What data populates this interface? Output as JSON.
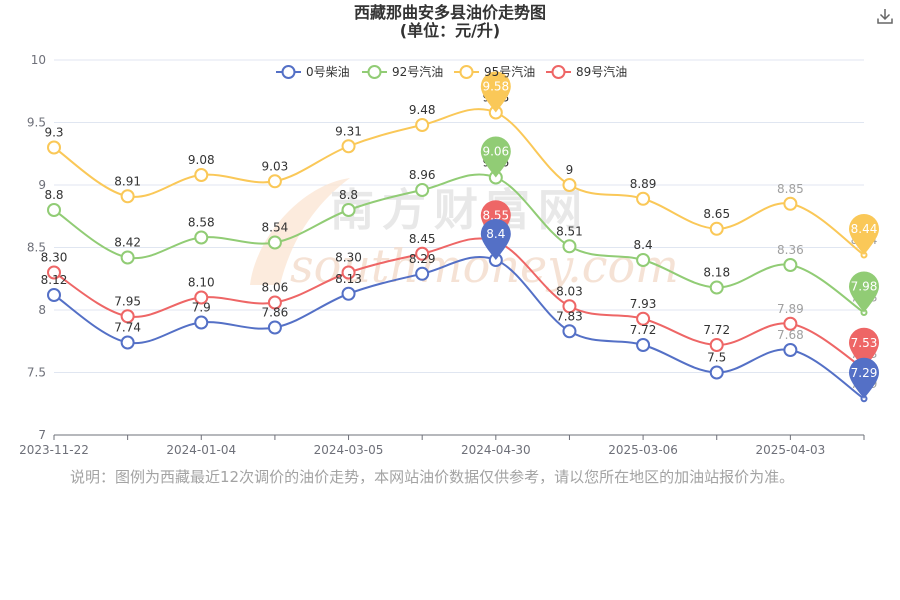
{
  "title": {
    "line1": "西藏那曲安多县油价走势图",
    "line2": "(单位：元/升)"
  },
  "toolbar": {
    "download_icon": "download-icon"
  },
  "watermark": {
    "cn": "南方财富网",
    "en": "southmoney.com"
  },
  "note": "说明：图例为西藏最近12次调价的油价走势，本网站油价数据仅供参考，请以您所在地区的加油站报价为准。",
  "chart_data": {
    "type": "line",
    "title": "西藏那曲安多县油价走势图",
    "subtitle": "(单位：元/升)",
    "xlabel": "",
    "ylabel": "",
    "ylim": [
      7,
      10
    ],
    "yticks": [
      7,
      7.5,
      8,
      8.5,
      9,
      9.5,
      10
    ],
    "ytick_labels": [
      "7",
      "7.5",
      "8",
      "8.5",
      "9",
      "9.5",
      "10"
    ],
    "point_count": 12,
    "x_tick_labels": [
      {
        "index": 0,
        "label": "2023-11-22"
      },
      {
        "index": 2,
        "label": "2024-01-04"
      },
      {
        "index": 4,
        "label": "2024-03-05"
      },
      {
        "index": 6,
        "label": "2024-04-30"
      },
      {
        "index": 8,
        "label": "2025-03-06"
      },
      {
        "index": 10,
        "label": "2025-04-03"
      }
    ],
    "grid": true,
    "legend_position": "top-center",
    "series": [
      {
        "name": "0号柴油",
        "color": "#5470c6",
        "values": [
          8.12,
          7.74,
          7.9,
          7.86,
          8.13,
          8.29,
          8.4,
          7.83,
          7.72,
          7.5,
          7.68,
          7.29
        ],
        "labels": [
          "8.12",
          "7.74",
          "7.9",
          "7.86",
          "8.13",
          "8.29",
          "8.4",
          "7.83",
          "7.72",
          "7.5",
          "7.68",
          "7.29"
        ]
      },
      {
        "name": "92号汽油",
        "color": "#91cc75",
        "values": [
          8.8,
          8.42,
          8.58,
          8.54,
          8.8,
          8.96,
          9.06,
          8.51,
          8.4,
          8.18,
          8.36,
          7.98
        ],
        "labels": [
          "8.8",
          "8.42",
          "8.58",
          "8.54",
          "8.8",
          "8.96",
          "9.06",
          "8.51",
          "8.4",
          "8.18",
          "8.36",
          "7.98"
        ]
      },
      {
        "name": "95号汽油",
        "color": "#fac858",
        "values": [
          9.3,
          8.91,
          9.08,
          9.03,
          9.31,
          9.48,
          9.58,
          9,
          8.89,
          8.65,
          8.85,
          8.44
        ],
        "labels": [
          "9.3",
          "8.91",
          "9.08",
          "9.03",
          "9.31",
          "9.48",
          "9.58",
          "9",
          "8.89",
          "8.65",
          "8.85",
          "8.44"
        ]
      },
      {
        "name": "89号汽油",
        "color": "#ee6666",
        "values": [
          8.3,
          7.95,
          8.1,
          8.06,
          8.3,
          8.45,
          8.55,
          8.03,
          7.93,
          7.72,
          7.89,
          7.53
        ],
        "labels": [
          "8.30",
          "7.95",
          "8.10",
          "8.06",
          "8.30",
          "8.45",
          "8.55",
          "8.03",
          "7.93",
          "7.72",
          "7.89",
          "7.53"
        ]
      }
    ],
    "markpoints": [
      {
        "series": "95号汽油",
        "kind": "max",
        "label": "9.58"
      },
      {
        "series": "92号汽油",
        "kind": "max",
        "label": "9.06"
      },
      {
        "series": "89号汽油",
        "kind": "max",
        "label": "8.55"
      },
      {
        "series": "0号柴油",
        "kind": "max",
        "label": "8.4"
      },
      {
        "series": "95号汽油",
        "kind": "min",
        "label": "8.44"
      },
      {
        "series": "92号汽油",
        "kind": "min",
        "label": "7.98"
      },
      {
        "series": "89号汽油",
        "kind": "min",
        "label": "7.53"
      },
      {
        "series": "0号柴油",
        "kind": "min",
        "label": "7.29"
      }
    ]
  }
}
